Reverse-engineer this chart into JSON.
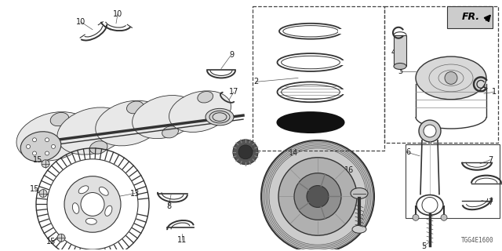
{
  "bg_color": "#ffffff",
  "diagram_code": "TGG4E1600",
  "fr_label": "FR.",
  "label_fontsize": 7.0,
  "label_color": "#1a1a1a",
  "line_color": "#333333",
  "gray_light": "#cccccc",
  "gray_mid": "#888888",
  "gray_dark": "#444444"
}
